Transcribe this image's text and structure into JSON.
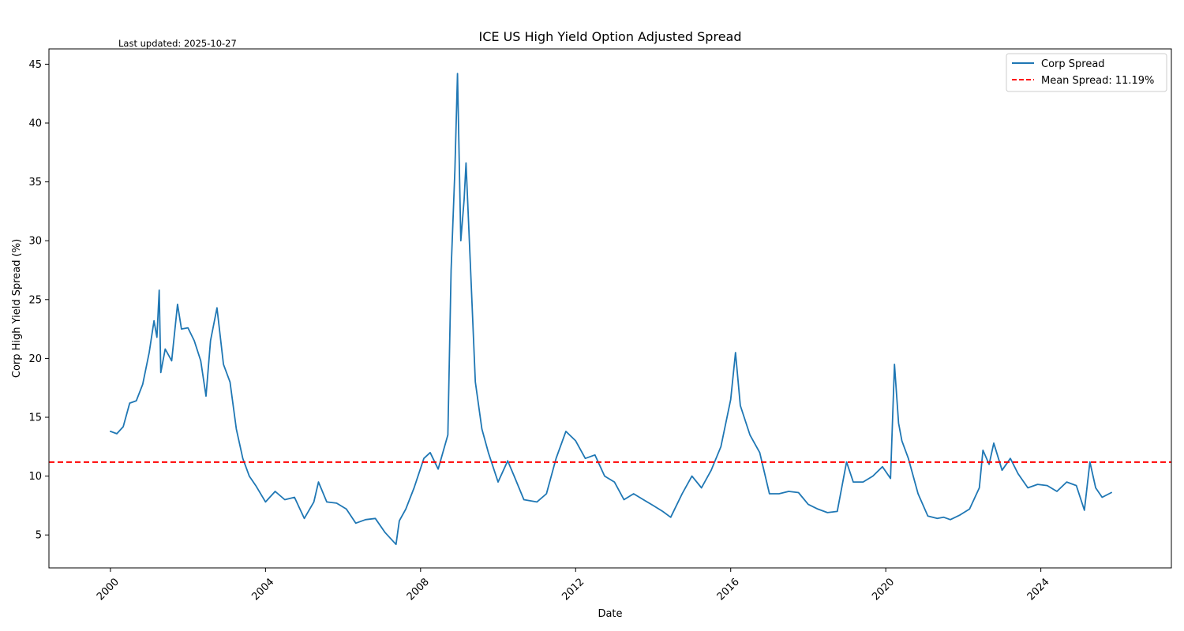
{
  "chart_data": {
    "type": "line",
    "title": "ICE US High Yield Option Adjusted Spread",
    "annotation": "Last updated: 2025-10-27",
    "xlabel": "Date",
    "ylabel": "Corp High Yield Spread (%)",
    "xlim": [
      "1998-06-01",
      "2027-05-15"
    ],
    "ylim": [
      2.2,
      46.3
    ],
    "x_ticks": [
      "2000",
      "2004",
      "2008",
      "2012",
      "2016",
      "2020",
      "2024"
    ],
    "y_ticks": [
      5,
      10,
      15,
      20,
      25,
      30,
      35,
      40,
      45
    ],
    "grid": false,
    "legend_position": "top-right",
    "series": [
      {
        "name": "Corp Spread",
        "color": "#1f77b4",
        "style": "solid",
        "x": [
          "2000-01-01",
          "2000-03-01",
          "2000-05-01",
          "2000-07-01",
          "2000-09-01",
          "2000-11-01",
          "2001-01-01",
          "2001-02-15",
          "2001-03-15",
          "2001-04-05",
          "2001-04-20",
          "2001-06-01",
          "2001-08-01",
          "2001-09-25",
          "2001-11-01",
          "2002-01-01",
          "2002-03-01",
          "2002-05-01",
          "2002-06-20",
          "2002-08-01",
          "2002-10-01",
          "2002-12-01",
          "2003-02-01",
          "2003-04-01",
          "2003-06-01",
          "2003-08-01",
          "2003-10-01",
          "2004-01-01",
          "2004-04-01",
          "2004-07-01",
          "2004-10-01",
          "2005-01-01",
          "2005-04-01",
          "2005-05-15",
          "2005-08-01",
          "2005-11-01",
          "2006-02-01",
          "2006-05-01",
          "2006-08-01",
          "2006-11-01",
          "2007-02-01",
          "2007-05-15",
          "2007-06-15",
          "2007-08-15",
          "2007-11-01",
          "2008-02-01",
          "2008-04-01",
          "2008-06-15",
          "2008-09-15",
          "2008-10-15",
          "2008-11-20",
          "2008-12-15",
          "2009-01-15",
          "2009-02-15",
          "2009-03-05",
          "2009-04-15",
          "2009-06-01",
          "2009-08-01",
          "2009-10-01",
          "2010-01-01",
          "2010-04-01",
          "2010-06-01",
          "2010-09-01",
          "2011-01-01",
          "2011-04-01",
          "2011-07-01",
          "2011-10-01",
          "2012-01-01",
          "2012-04-01",
          "2012-07-01",
          "2012-10-01",
          "2013-01-01",
          "2013-04-01",
          "2013-07-01",
          "2013-10-01",
          "2014-01-01",
          "2014-04-01",
          "2014-06-15",
          "2014-10-01",
          "2015-01-01",
          "2015-04-01",
          "2015-07-01",
          "2015-10-01",
          "2016-01-01",
          "2016-02-15",
          "2016-04-01",
          "2016-07-01",
          "2016-10-01",
          "2017-01-01",
          "2017-04-01",
          "2017-07-01",
          "2017-10-01",
          "2018-01-01",
          "2018-04-01",
          "2018-07-01",
          "2018-10-01",
          "2018-12-28",
          "2019-03-01",
          "2019-06-01",
          "2019-09-01",
          "2019-12-01",
          "2020-02-15",
          "2020-03-23",
          "2020-05-01",
          "2020-06-01",
          "2020-08-01",
          "2020-11-01",
          "2021-02-01",
          "2021-05-01",
          "2021-07-01",
          "2021-09-01",
          "2021-12-01",
          "2022-03-01",
          "2022-06-01",
          "2022-07-05",
          "2022-09-01",
          "2022-10-15",
          "2023-01-01",
          "2023-03-20",
          "2023-06-01",
          "2023-09-01",
          "2023-12-01",
          "2024-03-01",
          "2024-06-01",
          "2024-09-01",
          "2024-12-01",
          "2025-02-15",
          "2025-04-08",
          "2025-06-01",
          "2025-08-01",
          "2025-10-27"
        ],
        "y": [
          13.8,
          13.6,
          14.2,
          16.2,
          16.4,
          17.8,
          20.5,
          23.2,
          21.8,
          25.8,
          18.8,
          20.8,
          19.8,
          24.6,
          22.5,
          22.6,
          21.5,
          19.8,
          16.8,
          21.5,
          24.3,
          19.5,
          18.0,
          14.0,
          11.5,
          10.0,
          9.2,
          7.8,
          8.7,
          8.0,
          8.2,
          6.4,
          7.8,
          9.5,
          7.8,
          7.7,
          7.2,
          6.0,
          6.3,
          6.4,
          5.2,
          4.2,
          6.2,
          7.2,
          9.0,
          11.5,
          12.0,
          10.6,
          13.5,
          27.5,
          36.0,
          44.2,
          30.0,
          33.5,
          36.6,
          28.0,
          18.0,
          14.0,
          12.0,
          9.5,
          11.3,
          10.0,
          8.0,
          7.8,
          8.5,
          11.5,
          13.8,
          13.0,
          11.5,
          11.8,
          10.0,
          9.5,
          8.0,
          8.5,
          8.0,
          7.5,
          7.0,
          6.5,
          8.5,
          10.0,
          9.0,
          10.5,
          12.5,
          16.5,
          20.5,
          16.0,
          13.5,
          12.0,
          8.5,
          8.5,
          8.7,
          8.6,
          7.6,
          7.2,
          6.9,
          7.0,
          11.2,
          9.5,
          9.5,
          10.0,
          10.8,
          9.8,
          19.5,
          14.5,
          13.0,
          11.5,
          8.5,
          6.6,
          6.4,
          6.5,
          6.3,
          6.7,
          7.2,
          9.0,
          12.2,
          11.0,
          12.8,
          10.5,
          11.5,
          10.2,
          9.0,
          9.3,
          9.2,
          8.7,
          9.5,
          9.2,
          7.1,
          11.2,
          9.0,
          8.2,
          8.6
        ]
      }
    ],
    "reference_lines": [
      {
        "name": "Mean Spread: 11.19%",
        "value": 11.19,
        "color": "#ff0000",
        "style": "dashed"
      }
    ]
  }
}
